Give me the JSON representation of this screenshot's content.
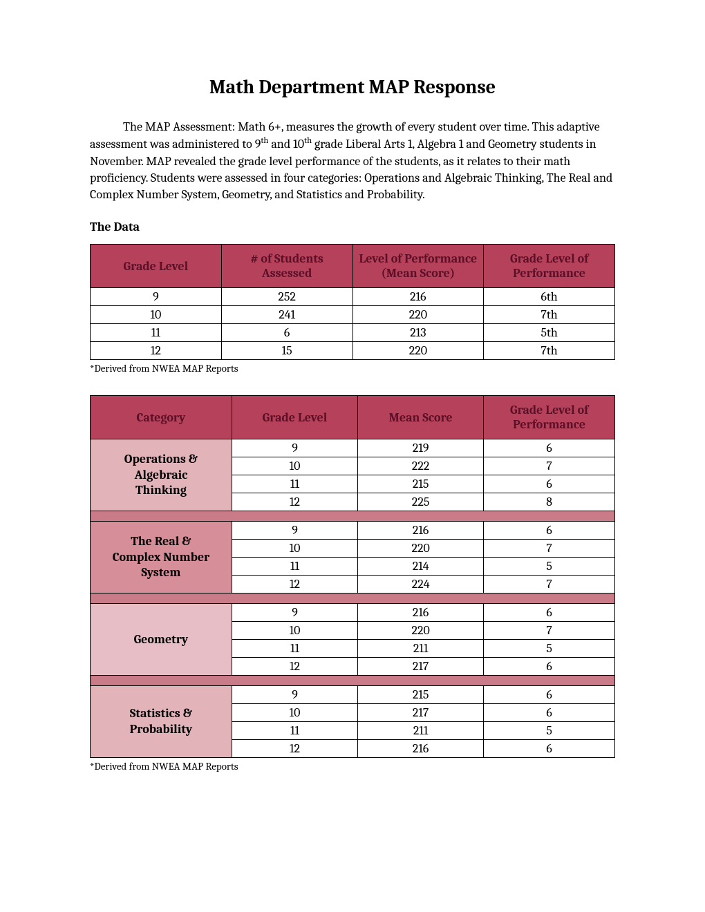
{
  "title": "Math Department MAP Response",
  "intro": {
    "pre": "The MAP Assessment: Math 6+, measures the growth of every student over time. This adaptive assessment was administered to 9",
    "sup1": "th",
    "mid": " and 10",
    "sup2": "th",
    "post": " grade Liberal Arts 1, Algebra 1 and Geometry students in November. MAP revealed the grade level performance of the students, as it relates to their math proficiency. Students were assessed in four categories: Operations and Algebraic Thinking, The Real and Complex Number System, Geometry, and Statistics and Probability."
  },
  "section_heading": "The Data",
  "footnote": "*Derived from NWEA MAP Reports",
  "table1": {
    "headers": [
      "Grade Level",
      "# of Students Assessed",
      "Level of Performance (Mean Score)",
      "Grade Level of Performance"
    ],
    "rows": [
      [
        "9",
        "252",
        "216",
        "6th"
      ],
      [
        "10",
        "241",
        "220",
        "7th"
      ],
      [
        "11",
        "6",
        "213",
        "5th"
      ],
      [
        "12",
        "15",
        "220",
        "7th"
      ]
    ],
    "header_bg": "#b6415b",
    "header_color": "#5b1028",
    "col_widths": [
      "25%",
      "25%",
      "25%",
      "25%"
    ]
  },
  "table2": {
    "headers": [
      "Category",
      "Grade Level",
      "Mean Score",
      "Grade Level of Performance"
    ],
    "col_widths": [
      "27%",
      "24%",
      "24%",
      "25%"
    ],
    "categories": [
      {
        "name_lines": [
          "Operations &",
          "Algebraic",
          "Thinking"
        ],
        "bg": "#e3b3ba",
        "rows": [
          [
            "9",
            "219",
            "6"
          ],
          [
            "10",
            "222",
            "7"
          ],
          [
            "11",
            "215",
            "6"
          ],
          [
            "12",
            "225",
            "8"
          ]
        ]
      },
      {
        "name_lines": [
          "The Real &",
          "Complex Number",
          "System"
        ],
        "bg": "#d68e99",
        "rows": [
          [
            "9",
            "216",
            "6"
          ],
          [
            "10",
            "220",
            "7"
          ],
          [
            "11",
            "214",
            "5"
          ],
          [
            "12",
            "224",
            "7"
          ]
        ]
      },
      {
        "name_lines": [
          "Geometry"
        ],
        "bg": "#e8bec6",
        "rows": [
          [
            "9",
            "216",
            "6"
          ],
          [
            "10",
            "220",
            "7"
          ],
          [
            "11",
            "211",
            "5"
          ],
          [
            "12",
            "217",
            "6"
          ]
        ]
      },
      {
        "name_lines": [
          "Statistics &",
          "Probability"
        ],
        "bg": "#e3b3ba",
        "rows": [
          [
            "9",
            "215",
            "6"
          ],
          [
            "10",
            "217",
            "6"
          ],
          [
            "11",
            "211",
            "5"
          ],
          [
            "12",
            "216",
            "6"
          ]
        ]
      }
    ],
    "separator_bg": "#c97b88"
  }
}
